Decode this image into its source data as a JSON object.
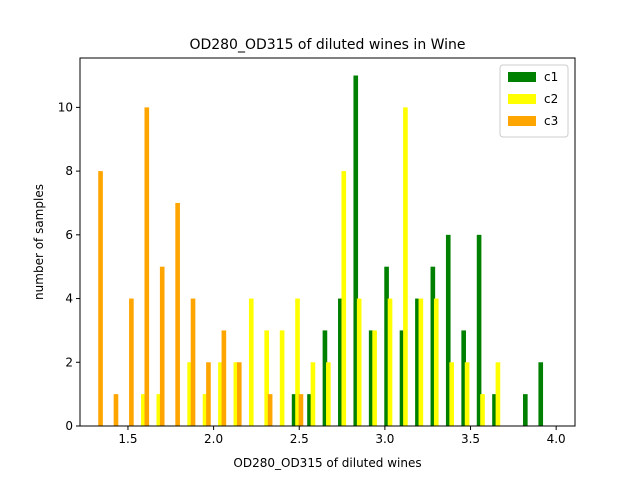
{
  "chart_data": {
    "type": "bar",
    "title": "OD280_OD315 of diluted wines in Wine",
    "xlabel": "OD280_OD315 of diluted wines",
    "ylabel": "number of samples",
    "xlim": [
      1.22,
      4.11
    ],
    "ylim": [
      0,
      11.55
    ],
    "xticks": [
      1.5,
      2.0,
      2.5,
      3.0,
      3.5,
      4.0
    ],
    "xtick_labels": [
      "1.5",
      "2.0",
      "2.5",
      "3.0",
      "3.5",
      "4.0"
    ],
    "yticks": [
      0,
      2,
      4,
      6,
      8,
      10
    ],
    "ytick_labels": [
      "0",
      "2",
      "4",
      "6",
      "8",
      "10"
    ],
    "bar_width": 0.027,
    "legend_position": "top-right",
    "grid": false,
    "series": [
      {
        "name": "c1",
        "color": "#008000",
        "points": [
          {
            "x": 2.47,
            "y": 1
          },
          {
            "x": 2.56,
            "y": 1
          },
          {
            "x": 2.65,
            "y": 3
          },
          {
            "x": 2.74,
            "y": 4
          },
          {
            "x": 2.83,
            "y": 11
          },
          {
            "x": 2.92,
            "y": 3
          },
          {
            "x": 3.01,
            "y": 5
          },
          {
            "x": 3.1,
            "y": 3
          },
          {
            "x": 3.19,
            "y": 4
          },
          {
            "x": 3.28,
            "y": 5
          },
          {
            "x": 3.37,
            "y": 6
          },
          {
            "x": 3.46,
            "y": 3
          },
          {
            "x": 3.55,
            "y": 6
          },
          {
            "x": 3.64,
            "y": 1
          },
          {
            "x": 3.82,
            "y": 1
          },
          {
            "x": 3.91,
            "y": 2
          }
        ]
      },
      {
        "name": "c2",
        "color": "#ffff00",
        "points": [
          {
            "x": 1.59,
            "y": 1
          },
          {
            "x": 1.68,
            "y": 1
          },
          {
            "x": 1.86,
            "y": 2
          },
          {
            "x": 1.95,
            "y": 1
          },
          {
            "x": 2.04,
            "y": 2
          },
          {
            "x": 2.13,
            "y": 2
          },
          {
            "x": 2.22,
            "y": 4
          },
          {
            "x": 2.31,
            "y": 3
          },
          {
            "x": 2.4,
            "y": 3
          },
          {
            "x": 2.49,
            "y": 4
          },
          {
            "x": 2.58,
            "y": 2
          },
          {
            "x": 2.67,
            "y": 2
          },
          {
            "x": 2.76,
            "y": 8
          },
          {
            "x": 2.85,
            "y": 4
          },
          {
            "x": 2.94,
            "y": 3
          },
          {
            "x": 3.03,
            "y": 4
          },
          {
            "x": 3.12,
            "y": 10
          },
          {
            "x": 3.21,
            "y": 4
          },
          {
            "x": 3.3,
            "y": 4
          },
          {
            "x": 3.39,
            "y": 2
          },
          {
            "x": 3.48,
            "y": 2
          },
          {
            "x": 3.57,
            "y": 1
          },
          {
            "x": 3.66,
            "y": 2
          }
        ]
      },
      {
        "name": "c3",
        "color": "#ffa500",
        "points": [
          {
            "x": 1.34,
            "y": 8
          },
          {
            "x": 1.43,
            "y": 1
          },
          {
            "x": 1.52,
            "y": 4
          },
          {
            "x": 1.61,
            "y": 10
          },
          {
            "x": 1.7,
            "y": 5
          },
          {
            "x": 1.79,
            "y": 7
          },
          {
            "x": 1.88,
            "y": 4
          },
          {
            "x": 1.97,
            "y": 2
          },
          {
            "x": 2.06,
            "y": 3
          },
          {
            "x": 2.15,
            "y": 2
          },
          {
            "x": 2.33,
            "y": 1
          },
          {
            "x": 2.51,
            "y": 1
          }
        ]
      }
    ]
  }
}
